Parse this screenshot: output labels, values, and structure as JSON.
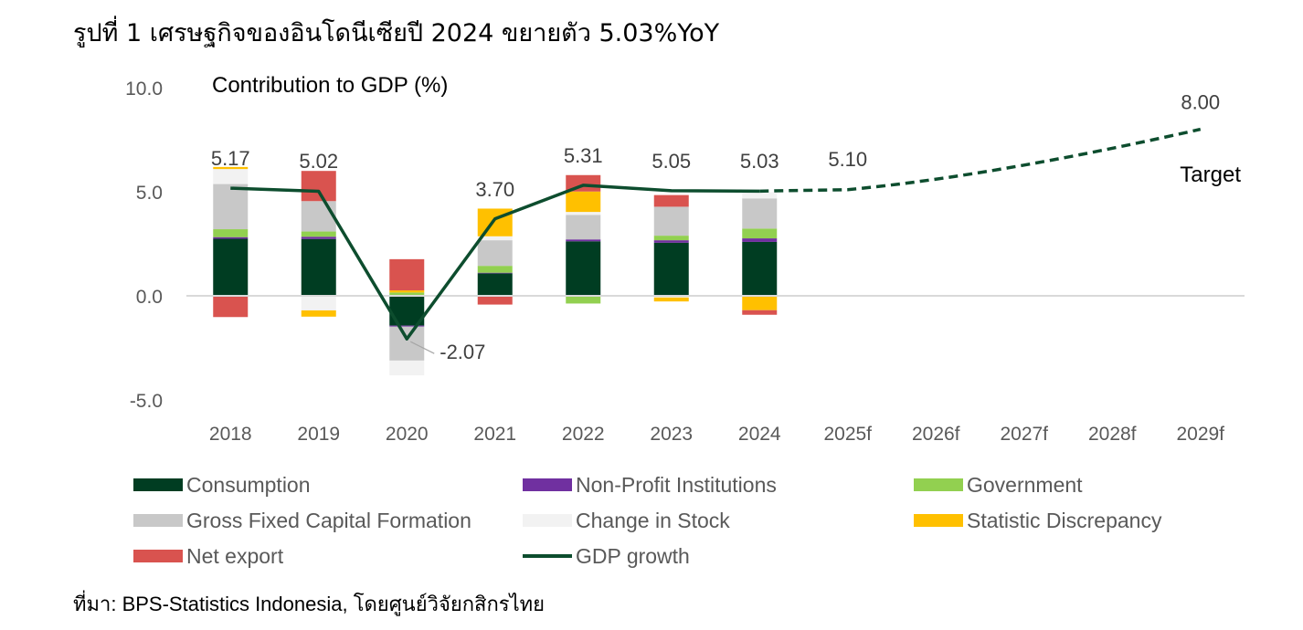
{
  "figure": {
    "title": "รูปที่ 1 เศรษฐกิจของอินโดนีเซียปี 2024 ขยายตัว 5.03%YoY",
    "source": "ที่มา: BPS-Statistics Indonesia, โดยศูนย์วิจัยกสิกรไทย"
  },
  "chart_data": {
    "type": "bar",
    "stacked": true,
    "ylabel": "Contribution to GDP (%)",
    "ylim": [
      -5,
      10
    ],
    "yticks": [
      "10.0",
      "5.0",
      "0.0",
      "-5.0"
    ],
    "categories": [
      "2018",
      "2019",
      "2020",
      "2021",
      "2022",
      "2023",
      "2024",
      "2025f",
      "2026f",
      "2027f",
      "2028f",
      "2029f"
    ],
    "series": [
      {
        "name": "Consumption",
        "color": "#003d22",
        "values": [
          2.74,
          2.73,
          -1.43,
          1.08,
          2.62,
          2.55,
          2.59,
          null,
          null,
          null,
          null,
          null
        ]
      },
      {
        "name": "Non-Profit Institutions",
        "color": "#7030a0",
        "values": [
          0.08,
          0.11,
          -0.05,
          0.03,
          0.09,
          0.12,
          0.17,
          null,
          null,
          null,
          null,
          null
        ]
      },
      {
        "name": "Government",
        "color": "#92d050",
        "values": [
          0.38,
          0.25,
          0.16,
          0.33,
          -0.37,
          0.22,
          0.47,
          null,
          null,
          null,
          null,
          null
        ]
      },
      {
        "name": "Gross Fixed Capital Formation",
        "color": "#c8c8c8",
        "values": [
          2.17,
          1.46,
          -1.63,
          1.23,
          1.18,
          1.39,
          1.45,
          null,
          null,
          null,
          null,
          null
        ]
      },
      {
        "name": "Change in Stock",
        "color": "#f2f2f2",
        "values": [
          0.72,
          -0.7,
          -0.71,
          0.19,
          0.14,
          -0.08,
          0.3,
          null,
          null,
          null,
          null,
          null
        ]
      },
      {
        "name": "Statistic Discrepancy",
        "color": "#ffc000",
        "values": [
          0.1,
          -0.3,
          0.1,
          1.33,
          0.98,
          -0.19,
          -0.69,
          null,
          null,
          null,
          null,
          null
        ]
      },
      {
        "name": "Net export",
        "color": "#d9534f",
        "values": [
          -1.02,
          1.45,
          1.5,
          -0.42,
          0.79,
          0.56,
          -0.22,
          null,
          null,
          null,
          null,
          null
        ]
      }
    ],
    "line": {
      "name": "GDP growth",
      "color": "#0d4d2e",
      "values": [
        5.17,
        5.02,
        -2.07,
        3.7,
        5.31,
        5.05,
        5.03,
        5.1,
        null,
        null,
        null,
        8.0
      ],
      "labels": [
        "5.17",
        "5.02",
        "-2.07",
        "3.70",
        "5.31",
        "5.05",
        "5.03",
        "5.10",
        "",
        "",
        "",
        "8.00"
      ],
      "dashed_from_index": 6
    },
    "annotations": [
      "Target"
    ],
    "legend_position": "bottom",
    "grid": false
  }
}
